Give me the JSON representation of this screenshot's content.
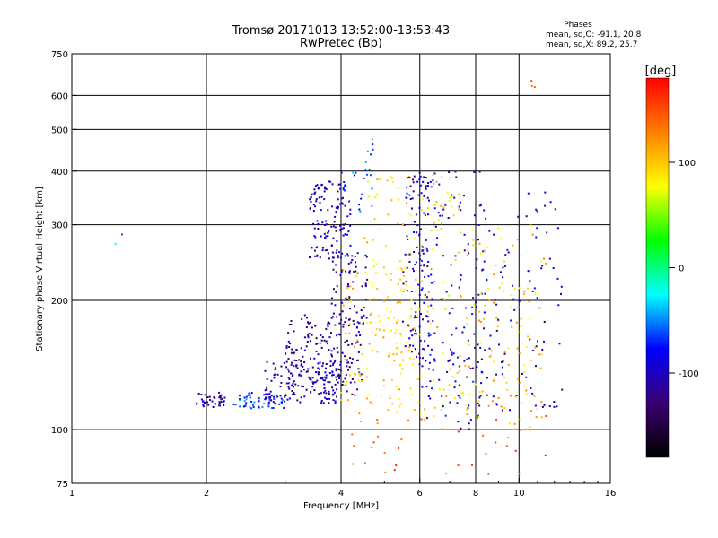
{
  "chart_data": {
    "type": "scatter",
    "title": "Tromsø 20171013 13:52:00-13:53:43",
    "subtitle": "RwPretec (Bp)",
    "xlabel": "Frequency [MHz]",
    "ylabel": "Stationary phase Virtual Height [km]",
    "x_scale": "log",
    "y_scale": "log",
    "xlim": [
      1,
      16
    ],
    "ylim": [
      75,
      750
    ],
    "x_ticks": [
      1,
      2,
      4,
      6,
      8,
      10,
      16
    ],
    "y_ticks": [
      75,
      100,
      200,
      300,
      400,
      500,
      600,
      750
    ],
    "grid": true,
    "stats": {
      "heading": "Phases",
      "line_o": "mean, sd,O: -91.1, 20.8",
      "line_x": "mean, sd,X:  89.2, 25.7"
    },
    "colorbar": {
      "label": "[deg]",
      "range": [
        -180,
        180
      ],
      "ticks": [
        -100,
        0,
        100
      ],
      "colors": [
        "#000000",
        "#3a0070",
        "#0000ff",
        "#00ffff",
        "#00ff00",
        "#ffff00",
        "#ff8000",
        "#ff0000"
      ]
    },
    "clusters": [
      {
        "f": [
          1.9,
          2.2
        ],
        "h": [
          112,
          122
        ],
        "phase": -110,
        "n": 40
      },
      {
        "f": [
          2.3,
          3.0
        ],
        "h": [
          112,
          122
        ],
        "phase": -70,
        "n": 60
      },
      {
        "f": [
          2.7,
          4.0
        ],
        "h": [
          115,
          145
        ],
        "phase": -105,
        "n": 130
      },
      {
        "f": [
          3.0,
          4.5
        ],
        "h": [
          120,
          185
        ],
        "phase": -115,
        "n": 180
      },
      {
        "f": [
          3.4,
          4.2
        ],
        "h": [
          250,
          380
        ],
        "phase": -100,
        "n": 130
      },
      {
        "f": [
          3.8,
          4.6
        ],
        "h": [
          175,
          260
        ],
        "phase": -110,
        "n": 70
      },
      {
        "f": [
          4.0,
          4.8
        ],
        "h": [
          320,
          490
        ],
        "phase": -60,
        "n": 25
      },
      {
        "f": [
          4.0,
          6.0
        ],
        "h": [
          110,
          240
        ],
        "phase": 95,
        "n": 110
      },
      {
        "f": [
          4.5,
          7.5
        ],
        "h": [
          105,
          400
        ],
        "phase": 90,
        "n": 150
      },
      {
        "f": [
          5.5,
          6.3
        ],
        "h": [
          140,
          400
        ],
        "phase": -100,
        "n": 110
      },
      {
        "f": [
          6.0,
          8.5
        ],
        "h": [
          100,
          400
        ],
        "phase": -95,
        "n": 160
      },
      {
        "f": [
          7.5,
          11.5
        ],
        "h": [
          100,
          300
        ],
        "phase": 100,
        "n": 120
      },
      {
        "f": [
          8.0,
          12.5
        ],
        "h": [
          110,
          360
        ],
        "phase": -100,
        "n": 90
      },
      {
        "f": [
          4.2,
          11.5
        ],
        "h": [
          77,
          110
        ],
        "phase": 140,
        "n": 40
      },
      {
        "f": [
          1.2,
          1.3
        ],
        "h": [
          270,
          285
        ],
        "phase": -50,
        "n": 2
      },
      {
        "f": [
          10.5,
          11.0
        ],
        "h": [
          620,
          650
        ],
        "phase": 160,
        "n": 3
      }
    ]
  }
}
